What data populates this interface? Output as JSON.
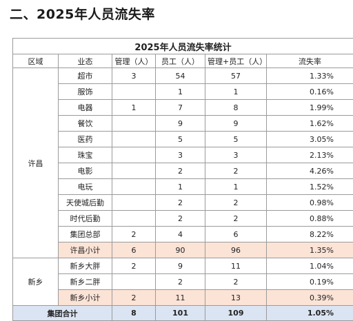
{
  "heading": "二、2025年人员流失率",
  "table": {
    "title": "2025年人员流失率统计",
    "headers": [
      "区域",
      "业态",
      "管理（人）",
      "员工（人）",
      "管理+员工（人）",
      "流失率"
    ],
    "groups": [
      {
        "region": "许昌",
        "rows": [
          {
            "type": "超市",
            "mgr": "3",
            "staff": "54",
            "total": "57",
            "rate": "1.33%"
          },
          {
            "type": "服饰",
            "mgr": "",
            "staff": "1",
            "total": "1",
            "rate": "0.16%"
          },
          {
            "type": "电器",
            "mgr": "1",
            "staff": "7",
            "total": "8",
            "rate": "1.99%"
          },
          {
            "type": "餐饮",
            "mgr": "",
            "staff": "9",
            "total": "9",
            "rate": "1.62%"
          },
          {
            "type": "医药",
            "mgr": "",
            "staff": "5",
            "total": "5",
            "rate": "3.05%"
          },
          {
            "type": "珠宝",
            "mgr": "",
            "staff": "3",
            "total": "3",
            "rate": "2.13%"
          },
          {
            "type": "电影",
            "mgr": "",
            "staff": "2",
            "total": "2",
            "rate": "4.26%"
          },
          {
            "type": "电玩",
            "mgr": "",
            "staff": "1",
            "total": "1",
            "rate": "1.52%"
          },
          {
            "type": "天使城后勤",
            "mgr": "",
            "staff": "2",
            "total": "2",
            "rate": "0.98%"
          },
          {
            "type": "时代后勤",
            "mgr": "",
            "staff": "2",
            "total": "2",
            "rate": "0.88%"
          },
          {
            "type": "集团总部",
            "mgr": "2",
            "staff": "4",
            "total": "6",
            "rate": "8.22%"
          }
        ],
        "subtotal": {
          "type": "许昌小计",
          "mgr": "6",
          "staff": "90",
          "total": "96",
          "rate": "1.35%"
        }
      },
      {
        "region": "新乡",
        "rows": [
          {
            "type": "新乡大胖",
            "mgr": "2",
            "staff": "9",
            "total": "11",
            "rate": "1.04%"
          },
          {
            "type": "新乡二胖",
            "mgr": "",
            "staff": "2",
            "total": "2",
            "rate": "0.19%"
          }
        ],
        "subtotal": {
          "type": "新乡小计",
          "mgr": "2",
          "staff": "11",
          "total": "13",
          "rate": "0.39%"
        }
      }
    ],
    "grand_total": {
      "label": "集团合计",
      "mgr": "8",
      "staff": "101",
      "total": "109",
      "rate": "1.05%"
    }
  },
  "colors": {
    "subtotal_bg": "#fbe3d6",
    "total_bg": "#dbe4f2",
    "border": "#9a9a9a"
  }
}
